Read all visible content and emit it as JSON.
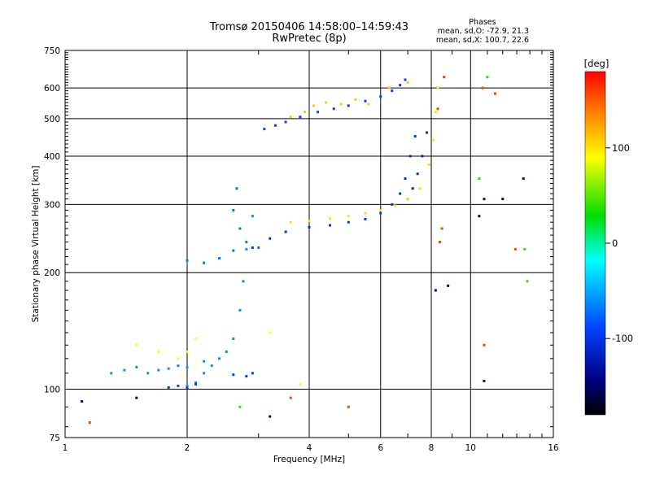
{
  "header": {
    "title_line1": "Tromsø 20150406 14:58:00–14:59:43",
    "title_line2": "RwPretec (8p)",
    "phase_title": "Phases",
    "phase_o": "mean, sd,O: -72.9, 21.3",
    "phase_x": "mean, sd,X: 100.7, 22.6"
  },
  "chart_data": {
    "type": "scatter",
    "xlabel": "Frequency [MHz]",
    "ylabel": "Stationary phase Virtual Height [km]",
    "x_scale": "log",
    "y_scale": "log",
    "xlim": [
      1,
      16
    ],
    "ylim": [
      75,
      750
    ],
    "x_ticks": [
      1,
      2,
      4,
      6,
      8,
      10,
      16
    ],
    "y_ticks": [
      75,
      100,
      200,
      300,
      400,
      500,
      600,
      750
    ],
    "grid": true,
    "colorbar": {
      "label": "[deg]",
      "range": [
        -180,
        180
      ],
      "ticks": [
        100,
        0,
        -100
      ],
      "colors": [
        "#ff0000",
        "#ff8000",
        "#ffff00",
        "#00dd00",
        "#00ffff",
        "#0040ff",
        "#000080",
        "#000000"
      ]
    },
    "series": [
      {
        "phase": -90,
        "points": [
          [
            3.1,
            470
          ],
          [
            3.3,
            480
          ],
          [
            3.5,
            490
          ],
          [
            3.8,
            505
          ],
          [
            4.2,
            520
          ],
          [
            4.6,
            530
          ],
          [
            5.0,
            540
          ],
          [
            5.5,
            555
          ],
          [
            6.0,
            570
          ],
          [
            6.4,
            590
          ],
          [
            6.7,
            610
          ],
          [
            6.9,
            630
          ]
        ]
      },
      {
        "phase": 110,
        "points": [
          [
            3.6,
            505
          ],
          [
            3.9,
            520
          ],
          [
            4.1,
            540
          ],
          [
            4.4,
            550
          ],
          [
            4.8,
            545
          ],
          [
            5.2,
            560
          ],
          [
            5.6,
            545
          ],
          [
            6.3,
            600
          ],
          [
            7.0,
            620
          ]
        ]
      },
      {
        "phase": -100,
        "points": [
          [
            2.9,
            232
          ],
          [
            3.2,
            245
          ],
          [
            3.5,
            255
          ],
          [
            4.0,
            262
          ],
          [
            4.5,
            265
          ],
          [
            5.0,
            270
          ],
          [
            5.5,
            275
          ],
          [
            6.0,
            285
          ],
          [
            6.4,
            300
          ],
          [
            6.7,
            320
          ],
          [
            6.9,
            350
          ],
          [
            7.1,
            400
          ],
          [
            7.3,
            450
          ]
        ]
      },
      {
        "phase": -110,
        "points": [
          [
            7.0,
            310
          ],
          [
            7.2,
            330
          ],
          [
            7.4,
            360
          ],
          [
            7.6,
            400
          ],
          [
            7.8,
            460
          ]
        ]
      },
      {
        "phase": 100,
        "points": [
          [
            3.6,
            270
          ],
          [
            4.0,
            272
          ],
          [
            4.5,
            276
          ],
          [
            5.0,
            280
          ],
          [
            5.5,
            285
          ],
          [
            6.0,
            290
          ],
          [
            6.5,
            298
          ],
          [
            7.0,
            310
          ],
          [
            7.5,
            330
          ],
          [
            7.9,
            380
          ],
          [
            8.1,
            440
          ],
          [
            8.2,
            520
          ],
          [
            8.3,
            600
          ]
        ]
      },
      {
        "phase": -70,
        "points": [
          [
            2.0,
            215
          ],
          [
            2.2,
            212
          ],
          [
            2.4,
            218
          ],
          [
            2.6,
            228
          ],
          [
            2.8,
            240
          ],
          [
            3.0,
            232
          ],
          [
            2.7,
            260
          ],
          [
            2.6,
            290
          ],
          [
            2.65,
            330
          ]
        ]
      },
      {
        "phase": -60,
        "points": [
          [
            2.0,
            102
          ],
          [
            2.1,
            104
          ],
          [
            2.2,
            110
          ],
          [
            2.3,
            115
          ],
          [
            2.4,
            120
          ],
          [
            2.5,
            125
          ],
          [
            2.6,
            135
          ],
          [
            2.7,
            160
          ],
          [
            2.75,
            190
          ],
          [
            2.8,
            230
          ],
          [
            2.9,
            280
          ]
        ]
      },
      {
        "phase": -60,
        "points": [
          [
            1.3,
            110
          ],
          [
            1.4,
            112
          ],
          [
            1.5,
            114
          ],
          [
            1.6,
            110
          ],
          [
            1.7,
            112
          ],
          [
            1.8,
            113
          ],
          [
            1.9,
            115
          ],
          [
            2.0,
            114
          ],
          [
            2.2,
            118
          ]
        ]
      },
      {
        "phase": -95,
        "points": [
          [
            1.8,
            101
          ],
          [
            1.9,
            102
          ],
          [
            2.0,
            101
          ],
          [
            2.1,
            103
          ],
          [
            2.6,
            109
          ],
          [
            2.8,
            108
          ],
          [
            2.9,
            110
          ]
        ]
      },
      {
        "phase": 90,
        "points": [
          [
            1.5,
            130
          ],
          [
            1.7,
            125
          ],
          [
            1.9,
            120
          ],
          [
            2.0,
            125
          ],
          [
            2.1,
            135
          ],
          [
            3.2,
            140
          ],
          [
            3.8,
            103
          ]
        ]
      },
      {
        "phase": 160,
        "points": [
          [
            8.3,
            530
          ],
          [
            8.6,
            640
          ],
          [
            10.7,
            600
          ],
          [
            11.5,
            580
          ],
          [
            10.8,
            130
          ],
          [
            12.9,
            230
          ],
          [
            3.6,
            95
          ],
          [
            5.0,
            90
          ],
          [
            1.15,
            82
          ],
          [
            8.5,
            260
          ],
          [
            8.4,
            240
          ]
        ]
      },
      {
        "phase": -140,
        "points": [
          [
            10.5,
            280
          ],
          [
            10.8,
            310
          ],
          [
            12.0,
            310
          ],
          [
            13.5,
            350
          ],
          [
            8.2,
            180
          ],
          [
            8.8,
            185
          ],
          [
            10.8,
            105
          ],
          [
            3.2,
            85
          ],
          [
            1.5,
            95
          ],
          [
            1.1,
            93
          ]
        ]
      },
      {
        "phase": 40,
        "points": [
          [
            10.5,
            350
          ],
          [
            11.0,
            640
          ],
          [
            13.6,
            230
          ],
          [
            13.8,
            190
          ],
          [
            2.7,
            90
          ]
        ]
      }
    ]
  }
}
